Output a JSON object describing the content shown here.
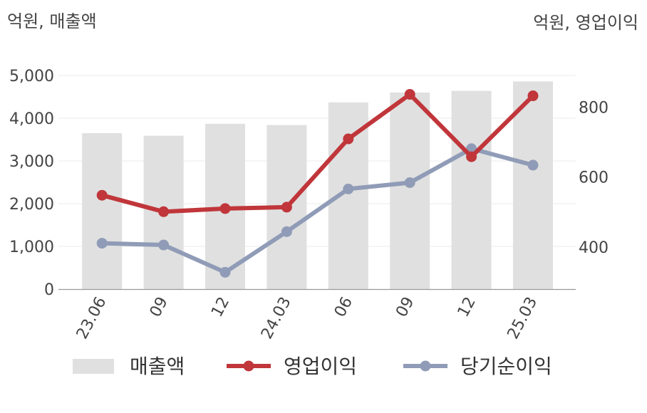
{
  "chart_data": {
    "type": "bar+line",
    "left_axis_label": "억원, 매출액",
    "right_axis_label": "억원, 영업이익",
    "categories": [
      "23.06",
      "09",
      "12",
      "24.03",
      "06",
      "09",
      "12",
      "25.03"
    ],
    "left_axis": {
      "min": 0,
      "max": 5000,
      "ticks": [
        0,
        1000,
        2000,
        3000,
        4000,
        5000
      ],
      "tick_labels": [
        "0",
        "1,000",
        "2,000",
        "3,000",
        "4,000",
        "5,000"
      ]
    },
    "right_axis": {
      "min": 280,
      "max": 890,
      "ticks": [
        400,
        600,
        800
      ],
      "tick_labels": [
        "400",
        "600",
        "800"
      ]
    },
    "series": [
      {
        "name": "매출액",
        "type": "bar",
        "axis": "left",
        "color": "#e0e0e0",
        "values": [
          3650,
          3590,
          3870,
          3840,
          4370,
          4600,
          4640,
          4860
        ]
      },
      {
        "name": "영업이익",
        "type": "line",
        "axis": "right",
        "color": "#c0363a",
        "values": [
          548,
          501,
          510,
          514,
          709,
          836,
          658,
          832
        ]
      },
      {
        "name": "당기순이익",
        "type": "line",
        "axis": "right",
        "color": "#909cb7",
        "values": [
          411,
          406,
          328,
          444,
          566,
          584,
          681,
          634
        ]
      }
    ],
    "grid": true,
    "legend_position": "bottom"
  }
}
